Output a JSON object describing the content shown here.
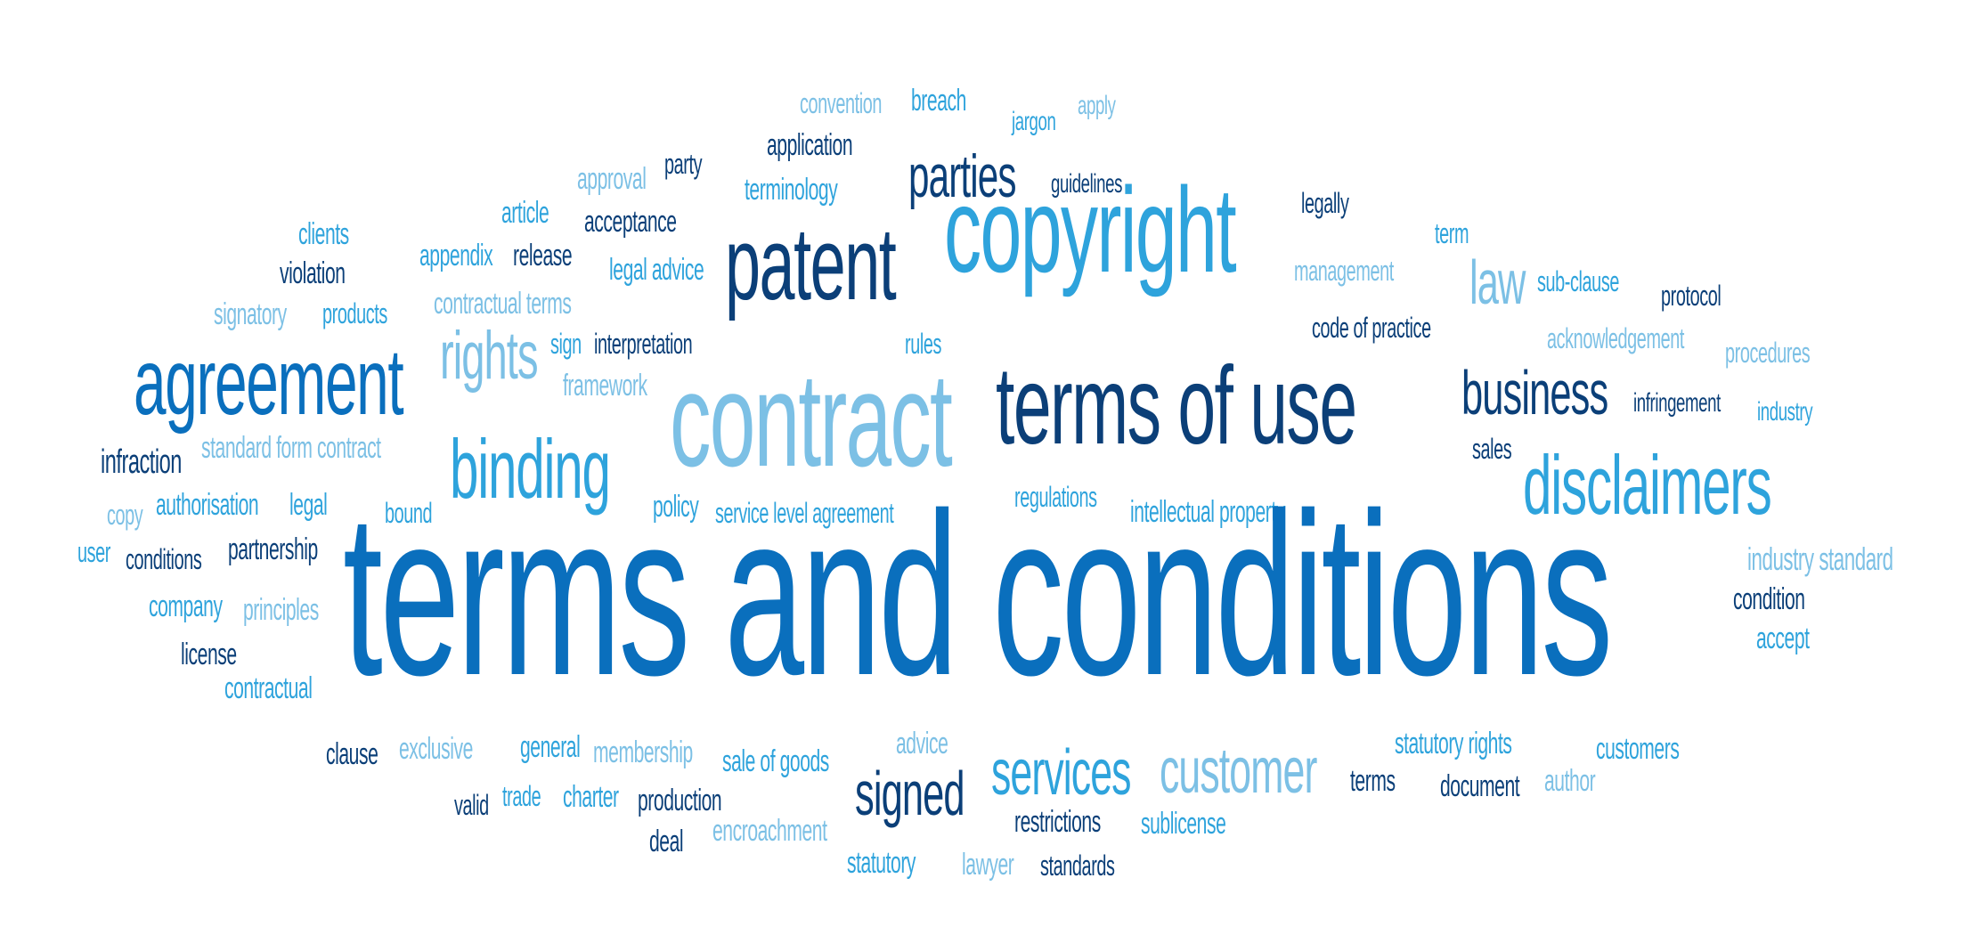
{
  "palette": {
    "navy": "#0b3f78",
    "blue": "#0a6fbd",
    "sky": "#2ea3dc",
    "light": "#7cc0e5",
    "background": "#ffffff"
  },
  "words": [
    {
      "text": "convention",
      "color": "light"
    },
    {
      "text": "breach",
      "color": "sky"
    },
    {
      "text": "jargon",
      "color": "sky"
    },
    {
      "text": "apply",
      "color": "light"
    },
    {
      "text": "application",
      "color": "navy"
    },
    {
      "text": "approval",
      "color": "light"
    },
    {
      "text": "party",
      "color": "navy"
    },
    {
      "text": "terminology",
      "color": "sky"
    },
    {
      "text": "parties",
      "color": "navy"
    },
    {
      "text": "guidelines",
      "color": "navy"
    },
    {
      "text": "article",
      "color": "sky"
    },
    {
      "text": "acceptance",
      "color": "navy"
    },
    {
      "text": "legally",
      "color": "navy"
    },
    {
      "text": "clients",
      "color": "sky"
    },
    {
      "text": "copyright",
      "color": "sky"
    },
    {
      "text": "term",
      "color": "sky"
    },
    {
      "text": "violation",
      "color": "navy"
    },
    {
      "text": "appendix",
      "color": "sky"
    },
    {
      "text": "release",
      "color": "navy"
    },
    {
      "text": "legal advice",
      "color": "sky"
    },
    {
      "text": "patent",
      "color": "navy"
    },
    {
      "text": "management",
      "color": "light"
    },
    {
      "text": "law",
      "color": "light"
    },
    {
      "text": "sub-clause",
      "color": "sky"
    },
    {
      "text": "protocol",
      "color": "navy"
    },
    {
      "text": "signatory",
      "color": "light"
    },
    {
      "text": "products",
      "color": "sky"
    },
    {
      "text": "contractual terms",
      "color": "light"
    },
    {
      "text": "code of practice",
      "color": "navy"
    },
    {
      "text": "agreement",
      "color": "blue"
    },
    {
      "text": "rights",
      "color": "light"
    },
    {
      "text": "sign",
      "color": "sky"
    },
    {
      "text": "interpretation",
      "color": "navy"
    },
    {
      "text": "rules",
      "color": "sky"
    },
    {
      "text": "acknowledgement",
      "color": "light"
    },
    {
      "text": "procedures",
      "color": "light"
    },
    {
      "text": "framework",
      "color": "light"
    },
    {
      "text": "contract",
      "color": "light"
    },
    {
      "text": "terms of use",
      "color": "navy"
    },
    {
      "text": "business",
      "color": "navy"
    },
    {
      "text": "infringement",
      "color": "navy"
    },
    {
      "text": "industry",
      "color": "sky"
    },
    {
      "text": "infraction",
      "color": "navy"
    },
    {
      "text": "standard form contract",
      "color": "light"
    },
    {
      "text": "binding",
      "color": "sky"
    },
    {
      "text": "sales",
      "color": "navy"
    },
    {
      "text": "disclaimers",
      "color": "sky"
    },
    {
      "text": "copy",
      "color": "light"
    },
    {
      "text": "authorisation",
      "color": "sky"
    },
    {
      "text": "legal",
      "color": "sky"
    },
    {
      "text": "bound",
      "color": "sky"
    },
    {
      "text": "policy",
      "color": "sky"
    },
    {
      "text": "service level agreement",
      "color": "sky"
    },
    {
      "text": "regulations",
      "color": "sky"
    },
    {
      "text": "intellectual property",
      "color": "sky"
    },
    {
      "text": "user",
      "color": "sky"
    },
    {
      "text": "conditions",
      "color": "navy"
    },
    {
      "text": "partnership",
      "color": "navy"
    },
    {
      "text": "industry standard",
      "color": "light"
    },
    {
      "text": "terms and conditions",
      "color": "blue"
    },
    {
      "text": "condition",
      "color": "navy"
    },
    {
      "text": "company",
      "color": "sky"
    },
    {
      "text": "principles",
      "color": "light"
    },
    {
      "text": "accept",
      "color": "sky"
    },
    {
      "text": "license",
      "color": "navy"
    },
    {
      "text": "contractual",
      "color": "sky"
    },
    {
      "text": "clause",
      "color": "navy"
    },
    {
      "text": "exclusive",
      "color": "light"
    },
    {
      "text": "general",
      "color": "sky"
    },
    {
      "text": "membership",
      "color": "light"
    },
    {
      "text": "sale of goods",
      "color": "sky"
    },
    {
      "text": "advice",
      "color": "light"
    },
    {
      "text": "services",
      "color": "sky"
    },
    {
      "text": "customer",
      "color": "light"
    },
    {
      "text": "statutory rights",
      "color": "sky"
    },
    {
      "text": "customers",
      "color": "sky"
    },
    {
      "text": "signed",
      "color": "navy"
    },
    {
      "text": "terms",
      "color": "navy"
    },
    {
      "text": "document",
      "color": "navy"
    },
    {
      "text": "author",
      "color": "light"
    },
    {
      "text": "valid",
      "color": "navy"
    },
    {
      "text": "trade",
      "color": "sky"
    },
    {
      "text": "charter",
      "color": "sky"
    },
    {
      "text": "production",
      "color": "navy"
    },
    {
      "text": "restrictions",
      "color": "navy"
    },
    {
      "text": "sublicense",
      "color": "sky"
    },
    {
      "text": "deal",
      "color": "navy"
    },
    {
      "text": "encroachment",
      "color": "light"
    },
    {
      "text": "statutory",
      "color": "sky"
    },
    {
      "text": "lawyer",
      "color": "light"
    },
    {
      "text": "standards",
      "color": "navy"
    }
  ]
}
